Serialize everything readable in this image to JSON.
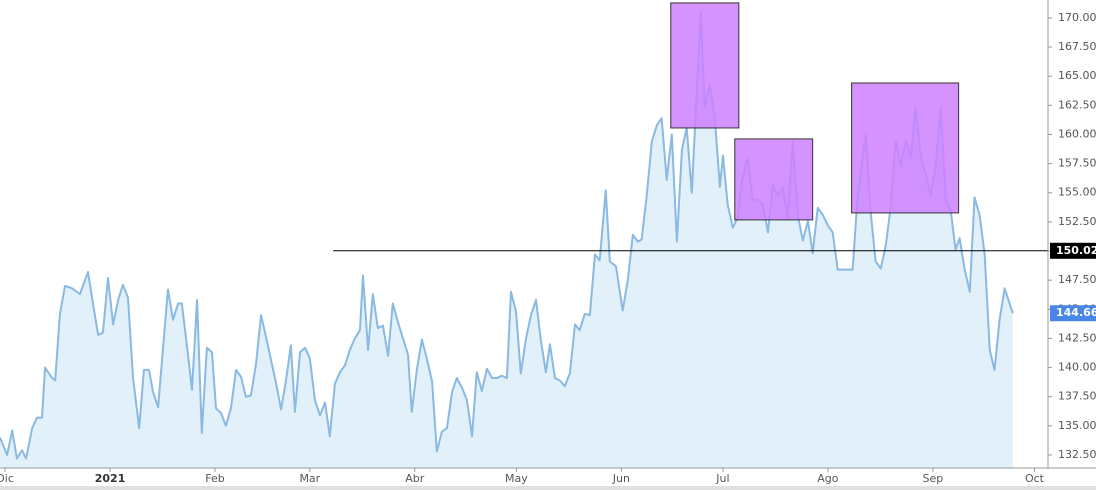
{
  "chart_data": {
    "type": "area",
    "series": [
      {
        "color": "#8ab9e2",
        "fill": "#e1f0f9",
        "x": [
          -1.5,
          0.6,
          2.1,
          3.5,
          5.0,
          6.2,
          8.0,
          9.4,
          10.9,
          11.8,
          13.9,
          14.8,
          16.2,
          17.7,
          19.8,
          22.1,
          24.5,
          26.0,
          27.5,
          28.9,
          30.4,
          31.9,
          33.4,
          34.8,
          36.3,
          37.8,
          39.6,
          41.0,
          42.5,
          43.7,
          45.2,
          46.6,
          48.1,
          49.6,
          51.1,
          52.2,
          53.7,
          55.2,
          56.7,
          58.1,
          59.6,
          61.1,
          62.3,
          63.8,
          65.2,
          66.7,
          68.2,
          69.7,
          71.1,
          72.6,
          74.1,
          75.6,
          77.0,
          78.5,
          80.0,
          81.5,
          82.9,
          84.4,
          85.6,
          87.1,
          88.6,
          90.0,
          91.5,
          93.0,
          94.5,
          95.9,
          97.4,
          98.9,
          100.4,
          101.8,
          103.3,
          104.8,
          105.7,
          107.2,
          108.6,
          110.1,
          111.6,
          113.1,
          114.5,
          116.0,
          117.5,
          119.0,
          120.1,
          121.6,
          123.1,
          124.6,
          126.1,
          127.5,
          129.0,
          130.5,
          132.0,
          133.4,
          134.9,
          136.4,
          137.9,
          139.3,
          140.8,
          142.3,
          143.8,
          145.2,
          146.7,
          148.2,
          149.4,
          150.9,
          152.3,
          153.8,
          155.3,
          156.8,
          158.2,
          159.7,
          160.9,
          162.4,
          163.8,
          165.3,
          166.8,
          168.3,
          169.7,
          171.2,
          172.7,
          174.2,
          175.6,
          177.4,
          178.6,
          180.4,
          182.4,
          183.9,
          185.4,
          186.9,
          188.0,
          189.5,
          191.0,
          192.5,
          193.9,
          195.4,
          196.9,
          198.4,
          199.9,
          201.3,
          202.8,
          204.3,
          205.5,
          206.6,
          208.1,
          209.6,
          211.1,
          212.0,
          213.4,
          214.9,
          216.4,
          217.6,
          219.3,
          220.8,
          222.3,
          223.8,
          225.3,
          226.7,
          228.2,
          229.7,
          231.1,
          232.6,
          234.1,
          235.6,
          237.1,
          238.5,
          240.0,
          241.5,
          243.0,
          244.4,
          245.9,
          247.4,
          248.9,
          250.3,
          251.8,
          254.2,
          255.6,
          257.1,
          258.6,
          260.1,
          261.5,
          263.0,
          264.5,
          266.0,
          267.5,
          268.9,
          270.4,
          271.9,
          273.4,
          274.8,
          276.3,
          277.8,
          279.3,
          280.7,
          281.9,
          283.4,
          284.9,
          286.3,
          287.8,
          289.3,
          290.8,
          292.2,
          293.7,
          295.2,
          297.6
        ],
        "values": [
          134.0,
          132.5,
          134.6,
          132.2,
          132.9,
          132.2,
          134.8,
          135.7,
          135.7,
          140.0,
          139.1,
          138.9,
          144.6,
          147.0,
          146.8,
          146.3,
          148.2,
          145.4,
          142.8,
          143.0,
          147.7,
          143.7,
          145.8,
          147.1,
          146.0,
          139.1,
          134.8,
          139.8,
          139.8,
          137.9,
          136.6,
          141.5,
          146.7,
          144.1,
          145.5,
          145.5,
          141.9,
          138.1,
          145.8,
          134.4,
          141.7,
          141.3,
          136.5,
          136.1,
          135.0,
          136.5,
          139.8,
          139.2,
          137.5,
          137.6,
          140.3,
          144.5,
          142.7,
          140.7,
          138.7,
          136.4,
          138.8,
          141.9,
          136.2,
          141.3,
          141.7,
          140.8,
          137.2,
          135.9,
          137.0,
          134.1,
          138.6,
          139.6,
          140.2,
          141.5,
          142.5,
          143.2,
          147.9,
          141.5,
          146.3,
          143.4,
          143.6,
          141.0,
          145.5,
          143.9,
          142.5,
          141.1,
          136.2,
          139.8,
          142.4,
          140.7,
          138.8,
          132.8,
          134.5,
          134.8,
          137.9,
          139.1,
          138.3,
          137.2,
          134.1,
          139.6,
          138.0,
          139.9,
          139.1,
          139.1,
          139.3,
          139.1,
          146.5,
          144.8,
          139.5,
          142.4,
          144.5,
          145.8,
          142.4,
          139.6,
          142.0,
          139.1,
          138.9,
          138.4,
          139.5,
          143.7,
          143.2,
          144.6,
          144.5,
          149.7,
          149.2,
          155.2,
          149.1,
          148.7,
          144.9,
          147.5,
          151.4,
          150.8,
          151.0,
          154.8,
          159.4,
          160.8,
          161.4,
          156.1,
          160.0,
          150.8,
          158.7,
          160.6,
          155.0,
          163.8,
          170.5,
          162.3,
          164.3,
          161.4,
          155.5,
          158.2,
          154.0,
          152.0,
          152.9,
          156.0,
          158.0,
          154.4,
          154.4,
          154.0,
          151.6,
          155.7,
          154.8,
          155.4,
          152.8,
          159.4,
          153.1,
          150.9,
          152.6,
          149.8,
          153.7,
          153.1,
          152.2,
          151.6,
          148.4,
          148.4,
          148.4,
          148.4,
          154.8,
          160.0,
          153.4,
          149.1,
          148.5,
          150.5,
          153.7,
          159.5,
          157.4,
          159.5,
          158.0,
          162.3,
          158.2,
          156.5,
          154.8,
          157.2,
          162.3,
          154.4,
          153.4,
          150.1,
          151.1,
          148.4,
          146.5,
          154.6,
          153.1,
          149.7,
          141.5,
          139.8,
          144.1,
          146.8,
          144.66
        ]
      }
    ],
    "xlim": [
      -1.5,
      308
    ],
    "xticks": [
      {
        "value": 0,
        "label": "Dic"
      },
      {
        "value": 31,
        "label": "2021",
        "bold": true
      },
      {
        "value": 62,
        "label": "Feb"
      },
      {
        "value": 90,
        "label": "Mar"
      },
      {
        "value": 121,
        "label": "Abr"
      },
      {
        "value": 151,
        "label": "May"
      },
      {
        "value": 182,
        "label": "Jun"
      },
      {
        "value": 212,
        "label": "Jul"
      },
      {
        "value": 243,
        "label": "Ago"
      },
      {
        "value": 274,
        "label": "Sep"
      },
      {
        "value": 304,
        "label": "Oct"
      }
    ],
    "ylim": [
      131.38,
      171.54
    ],
    "yticks": [
      {
        "value": 132.5,
        "label": "132.50"
      },
      {
        "value": 135,
        "label": "135.00"
      },
      {
        "value": 137.5,
        "label": "137.50"
      },
      {
        "value": 140,
        "label": "140.00"
      },
      {
        "value": 142.5,
        "label": "142.50"
      },
      {
        "value": 145,
        "label": "145.00"
      },
      {
        "value": 147.5,
        "label": "147.50"
      },
      {
        "value": 150,
        "label": "150.00"
      },
      {
        "value": 152.5,
        "label": "152.50"
      },
      {
        "value": 155,
        "label": "155.00"
      },
      {
        "value": 157.5,
        "label": "157.50"
      },
      {
        "value": 160,
        "label": "160.00"
      },
      {
        "value": 162.5,
        "label": "162.50"
      },
      {
        "value": 165,
        "label": "165.00"
      },
      {
        "value": 167.5,
        "label": "167.50"
      },
      {
        "value": 170,
        "label": "170.00"
      }
    ],
    "hline": {
      "value": 150.02,
      "x_start": 96.9,
      "color": "#000000"
    },
    "last_price_color": "#4a86e8",
    "highlight_color": "#cc80ff",
    "highlight_boxes": [
      {
        "x": [
          196.6,
          216.7
        ],
        "y": [
          160.56,
          171.29
        ]
      },
      {
        "x": [
          215.5,
          238.5
        ],
        "y": [
          152.67,
          159.62
        ]
      },
      {
        "x": [
          250.0,
          281.6
        ],
        "y": [
          153.27,
          164.42
        ]
      }
    ]
  }
}
